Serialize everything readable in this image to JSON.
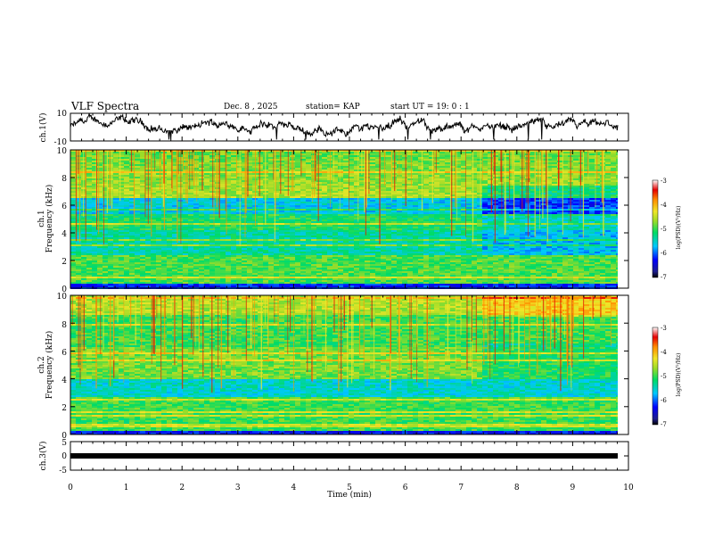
{
  "header": {
    "title": "VLF Spectra",
    "date": "Dec. 8 , 2025",
    "station": "station= KAP",
    "start": "start  UT =   19: 0  : 1"
  },
  "chart_data": [
    {
      "id": "ch1-waveform",
      "type": "line",
      "ylabel": "ch.1(V)",
      "ylim": [
        -10,
        10
      ],
      "yticks": [
        "10",
        "-10"
      ],
      "xlim": [
        0,
        10
      ],
      "trace_color": "#000000"
    },
    {
      "id": "ch1-spectrogram",
      "type": "heatmap",
      "ylabel_line1": "ch.1",
      "ylabel_line2": "Frequency (kHz)",
      "ylim": [
        0,
        10
      ],
      "yticks": [
        "0",
        "2",
        "4",
        "6",
        "8",
        "10"
      ],
      "xlim": [
        0,
        9.8
      ],
      "colorbar": {
        "label": "log(PSD)(V²/Hz)",
        "min": -7,
        "max": -3,
        "ticks": [
          "-3",
          "-4",
          "-5",
          "-6",
          "-7"
        ]
      }
    },
    {
      "id": "ch2-spectrogram",
      "type": "heatmap",
      "ylabel_line1": "ch.2",
      "ylabel_line2": "Frequency (kHz)",
      "ylim": [
        0,
        10
      ],
      "yticks": [
        "0",
        "2",
        "4",
        "6",
        "8",
        "10"
      ],
      "xlim": [
        0,
        9.8
      ],
      "colorbar": {
        "label": "log(PSD)(V²/Hz)",
        "min": -7,
        "max": -3,
        "ticks": [
          "-3",
          "-4",
          "-5",
          "-6",
          "-7"
        ]
      }
    },
    {
      "id": "ch3-waveform",
      "type": "line",
      "ylabel": "ch.3(V)",
      "ylim": [
        -5,
        5
      ],
      "yticks": [
        "5",
        "0",
        "-5"
      ],
      "xlim": [
        0,
        10
      ],
      "xlabel": "Time  (min)",
      "xticks": [
        "0",
        "1",
        "2",
        "3",
        "4",
        "5",
        "6",
        "7",
        "8",
        "9",
        "10"
      ],
      "constant_value": -0.2
    }
  ]
}
